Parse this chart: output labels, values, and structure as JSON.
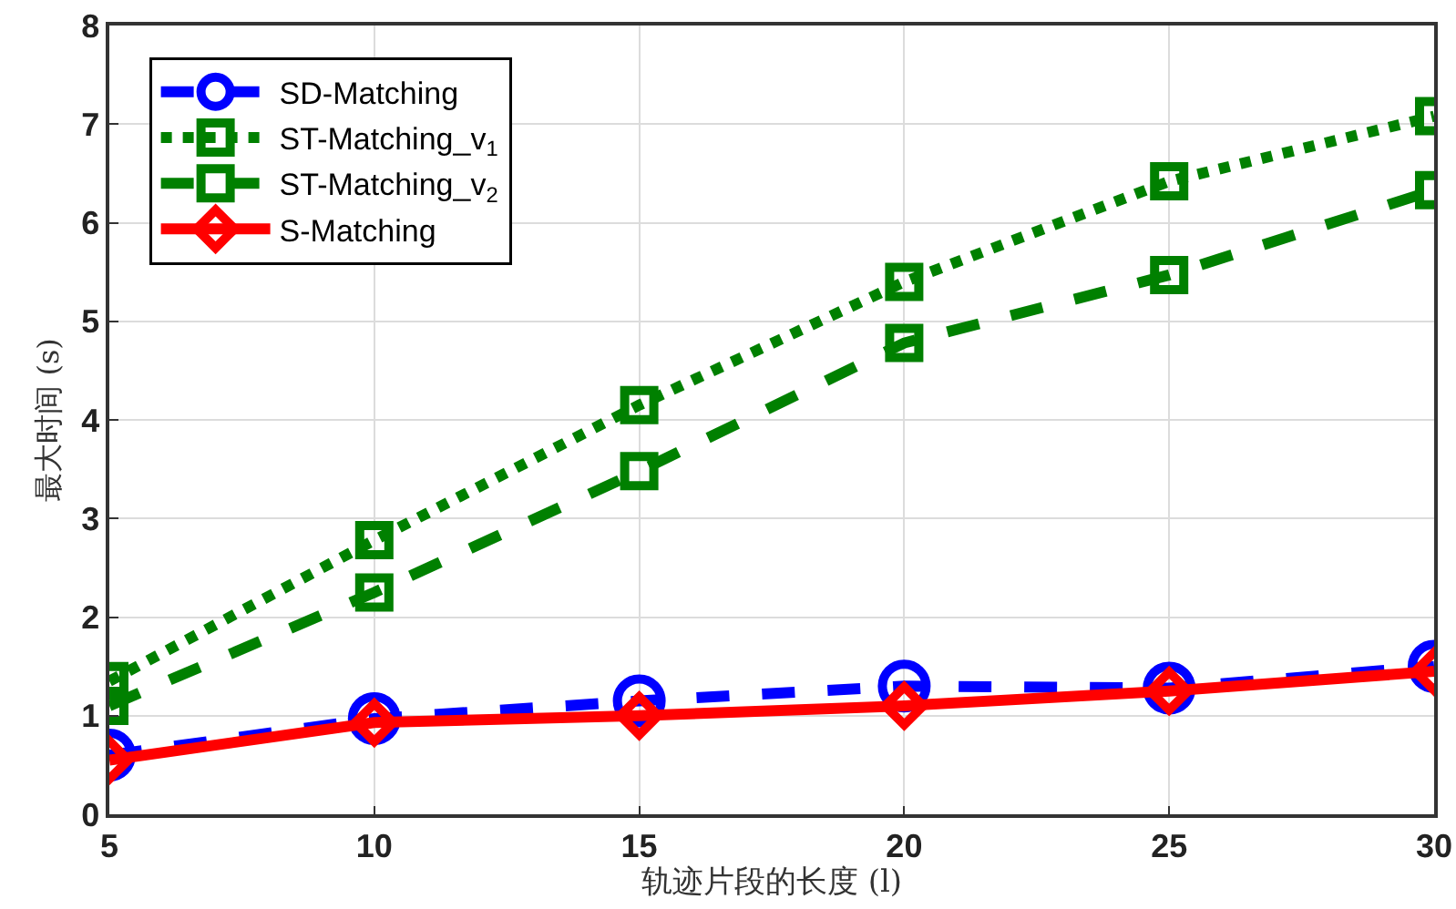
{
  "chart_data": {
    "type": "line",
    "xlabel": "轨迹片段的长度 (l)",
    "ylabel": "最大时间 (s)",
    "x": [
      5,
      10,
      15,
      20,
      25,
      30
    ],
    "series": [
      {
        "name": "SD-Matching",
        "color": "#0000ff",
        "marker": "circle",
        "line_style": "dashed",
        "values": [
          0.6,
          0.97,
          1.15,
          1.3,
          1.28,
          1.5
        ]
      },
      {
        "name": "ST-Matching_v$_{1}$",
        "color": "#008000",
        "marker": "square",
        "line_style": "dotted",
        "values": [
          1.35,
          2.78,
          4.15,
          5.4,
          6.42,
          7.08
        ]
      },
      {
        "name": "ST-Matching_v$_{2}$",
        "color": "#008000",
        "marker": "square",
        "line_style": "dashed",
        "values": [
          1.1,
          2.25,
          3.48,
          4.78,
          5.47,
          6.33
        ]
      },
      {
        "name": "S-Matching",
        "color": "#ff0000",
        "marker": "diamond",
        "line_style": "solid",
        "values": [
          0.55,
          0.93,
          1.0,
          1.1,
          1.25,
          1.45
        ]
      }
    ],
    "xlim": [
      5,
      30
    ],
    "xticks": [
      5,
      10,
      15,
      20,
      25,
      30
    ],
    "ylim": [
      0,
      8
    ],
    "yticks": [
      0,
      1,
      2,
      3,
      4,
      5,
      6,
      7,
      8
    ],
    "grid": true,
    "legend": "top left"
  }
}
